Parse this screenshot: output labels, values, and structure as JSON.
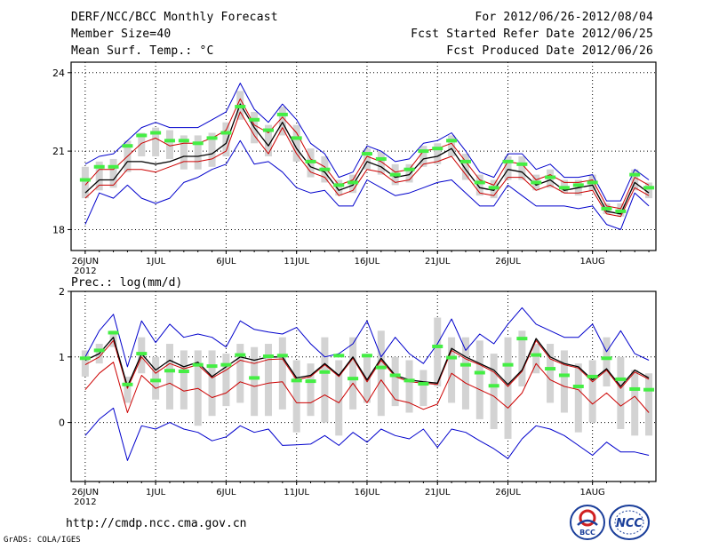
{
  "header": {
    "title": "DERF/NCC/BCC Monthly Forecast",
    "member_size": "Member Size=40",
    "variable": "Mean Surf. Temp.: °C",
    "period": "For 2012/06/26-2012/08/04",
    "started": "Fcst Started Refer Date 2012/06/25",
    "produced": "Fcst Produced Date 2012/06/26"
  },
  "footer": {
    "url": "http://cmdp.ncc.cma.gov.cn",
    "credit": "GrADS: COLA/IGES",
    "logo1_text": "BCC",
    "logo2_text": "NCC"
  },
  "colors": {
    "box": "#d3d3d3",
    "mean": "#44ee44",
    "median": "#000000",
    "spread": "#cc0000",
    "envelope": "#0000cc",
    "grid": "#000000"
  },
  "chart_data": [
    {
      "type": "line",
      "name": "temperature",
      "ylabel": "Mean Surf. Temp.: °C",
      "ylim": [
        17.2,
        24.4
      ],
      "yticks": [
        18,
        21,
        24
      ],
      "xlim": [
        -1,
        40.5
      ],
      "xticks": [
        {
          "i": 0,
          "label": "26JUN",
          "sub": "2012"
        },
        {
          "i": 5,
          "label": "1JUL"
        },
        {
          "i": 10,
          "label": "6JUL"
        },
        {
          "i": 15,
          "label": "11JUL"
        },
        {
          "i": 20,
          "label": "16JUL"
        },
        {
          "i": 25,
          "label": "21JUL"
        },
        {
          "i": 30,
          "label": "26JUL"
        },
        {
          "i": 36,
          "label": "1AUG"
        }
      ],
      "series": {
        "max": [
          20.5,
          20.8,
          20.9,
          21.4,
          21.9,
          22.1,
          21.9,
          21.9,
          21.9,
          22.2,
          22.5,
          23.6,
          22.6,
          22.1,
          22.8,
          22.2,
          21.3,
          20.9,
          20.0,
          20.2,
          21.2,
          21.0,
          20.6,
          20.7,
          21.3,
          21.4,
          21.7,
          21.0,
          20.2,
          20.0,
          20.9,
          20.9,
          20.3,
          20.5,
          20.0,
          20.0,
          20.1,
          19.1,
          19.1,
          20.3,
          19.9
        ],
        "hi": [
          19.7,
          20.3,
          20.3,
          20.8,
          21.3,
          21.5,
          21.2,
          21.3,
          21.3,
          21.5,
          21.8,
          23.0,
          22.0,
          21.7,
          22.3,
          21.7,
          20.7,
          20.4,
          19.7,
          19.9,
          20.8,
          20.6,
          20.2,
          20.3,
          21.0,
          21.1,
          21.3,
          20.6,
          19.9,
          19.7,
          20.6,
          20.5,
          19.9,
          20.1,
          19.8,
          19.8,
          19.9,
          18.9,
          18.8,
          20.0,
          19.7
        ],
        "median": [
          19.4,
          19.9,
          19.9,
          20.6,
          20.6,
          20.5,
          20.6,
          20.8,
          20.8,
          20.9,
          21.3,
          22.8,
          21.9,
          21.2,
          22.1,
          21.1,
          20.4,
          20.2,
          19.5,
          19.7,
          20.6,
          20.4,
          20.0,
          20.1,
          20.7,
          20.8,
          21.1,
          20.3,
          19.6,
          19.5,
          20.3,
          20.2,
          19.7,
          19.9,
          19.5,
          19.6,
          19.7,
          18.7,
          18.6,
          19.8,
          19.4
        ],
        "lo": [
          19.2,
          19.7,
          19.7,
          20.3,
          20.3,
          20.2,
          20.4,
          20.6,
          20.6,
          20.7,
          21.0,
          22.5,
          21.6,
          20.9,
          21.9,
          20.9,
          20.2,
          20.0,
          19.3,
          19.5,
          20.3,
          20.2,
          19.8,
          19.9,
          20.5,
          20.6,
          20.8,
          20.1,
          19.4,
          19.3,
          20.0,
          20.0,
          19.5,
          19.7,
          19.4,
          19.4,
          19.5,
          18.6,
          18.5,
          19.6,
          19.3
        ],
        "min": [
          18.2,
          19.4,
          19.2,
          19.7,
          19.2,
          19.0,
          19.2,
          19.8,
          20.0,
          20.3,
          20.5,
          21.4,
          20.5,
          20.6,
          20.2,
          19.6,
          19.4,
          19.5,
          18.9,
          18.9,
          19.9,
          19.6,
          19.3,
          19.4,
          19.6,
          19.8,
          19.9,
          19.4,
          18.9,
          18.9,
          19.7,
          19.3,
          18.9,
          18.9,
          18.9,
          18.8,
          18.9,
          18.2,
          18.0,
          19.4,
          18.9
        ],
        "mean": [
          19.9,
          20.4,
          20.4,
          21.2,
          21.6,
          21.7,
          21.4,
          21.4,
          21.3,
          21.5,
          21.7,
          22.7,
          22.2,
          21.8,
          22.4,
          21.5,
          20.6,
          20.3,
          19.7,
          19.8,
          20.9,
          20.7,
          20.1,
          20.3,
          21.0,
          21.1,
          21.4,
          20.6,
          19.8,
          19.6,
          20.6,
          20.5,
          19.8,
          20.0,
          19.6,
          19.7,
          19.8,
          18.8,
          18.7,
          20.1,
          19.6
        ],
        "box_top": [
          20.4,
          20.6,
          20.7,
          21.4,
          21.7,
          21.9,
          21.8,
          21.6,
          21.6,
          21.7,
          22.1,
          23.3,
          22.5,
          22.0,
          22.7,
          22.0,
          21.1,
          20.8,
          19.9,
          20.1,
          21.1,
          21.0,
          20.5,
          20.5,
          21.2,
          21.3,
          21.6,
          20.9,
          20.1,
          19.9,
          20.8,
          20.8,
          20.1,
          20.3,
          19.9,
          19.9,
          20.1,
          19.0,
          19.0,
          20.3,
          19.8
        ],
        "box_bot": [
          19.2,
          19.5,
          19.6,
          20.2,
          20.8,
          20.8,
          20.7,
          20.3,
          20.3,
          20.4,
          20.8,
          22.2,
          21.3,
          20.8,
          21.6,
          20.6,
          20.0,
          19.8,
          19.3,
          19.4,
          20.3,
          20.1,
          19.7,
          19.8,
          20.4,
          20.5,
          20.8,
          19.9,
          19.3,
          19.2,
          19.9,
          19.9,
          19.5,
          19.6,
          19.4,
          19.3,
          19.5,
          18.6,
          18.5,
          19.5,
          19.2
        ]
      }
    },
    {
      "type": "line",
      "name": "precipitation",
      "ylabel": "Prec.: log(mm/d)",
      "ylim": [
        -0.9,
        2.0
      ],
      "yticks": [
        0,
        1,
        2
      ],
      "xlim": [
        -1,
        40.5
      ],
      "xticks": [
        {
          "i": 0,
          "label": "26JUN",
          "sub": "2012"
        },
        {
          "i": 5,
          "label": "1JUL"
        },
        {
          "i": 10,
          "label": "6JUL"
        },
        {
          "i": 15,
          "label": "11JUL"
        },
        {
          "i": 20,
          "label": "16JUL"
        },
        {
          "i": 25,
          "label": "21JUL"
        },
        {
          "i": 30,
          "label": "26JUL"
        },
        {
          "i": 36,
          "label": "1AUG"
        }
      ],
      "series": {
        "max": [
          1.0,
          1.4,
          1.65,
          0.85,
          1.55,
          1.22,
          1.5,
          1.3,
          1.35,
          1.3,
          1.15,
          1.55,
          1.42,
          1.38,
          1.35,
          1.45,
          1.2,
          1.0,
          1.05,
          1.2,
          1.55,
          1.0,
          1.3,
          1.05,
          0.9,
          1.2,
          1.58,
          1.1,
          1.35,
          1.2,
          1.5,
          1.75,
          1.5,
          1.4,
          1.3,
          1.3,
          1.5,
          1.08,
          1.4,
          1.05,
          0.95
        ],
        "median": [
          0.95,
          1.05,
          1.3,
          0.55,
          1.05,
          0.8,
          0.95,
          0.85,
          0.92,
          0.7,
          0.85,
          1.0,
          0.95,
          1.0,
          1.0,
          0.68,
          0.72,
          0.9,
          0.72,
          1.0,
          0.65,
          0.98,
          0.72,
          0.65,
          0.62,
          0.6,
          1.13,
          1.0,
          0.9,
          0.8,
          0.58,
          0.8,
          1.28,
          1.0,
          0.9,
          0.85,
          0.65,
          0.82,
          0.55,
          0.8,
          0.68
        ],
        "lo": [
          0.88,
          1.0,
          1.25,
          0.52,
          1.0,
          0.75,
          0.9,
          0.82,
          0.88,
          0.68,
          0.8,
          0.95,
          0.9,
          0.96,
          0.97,
          0.65,
          0.7,
          0.88,
          0.7,
          0.98,
          0.62,
          0.95,
          0.7,
          0.62,
          0.6,
          0.58,
          1.1,
          0.97,
          0.88,
          0.77,
          0.55,
          0.78,
          1.25,
          0.97,
          0.88,
          0.83,
          0.62,
          0.8,
          0.52,
          0.77,
          0.66
        ],
        "spread": [
          0.5,
          0.75,
          0.92,
          0.15,
          0.72,
          0.52,
          0.6,
          0.48,
          0.52,
          0.38,
          0.45,
          0.62,
          0.55,
          0.6,
          0.62,
          0.3,
          0.3,
          0.42,
          0.3,
          0.6,
          0.3,
          0.65,
          0.35,
          0.3,
          0.2,
          0.28,
          0.75,
          0.6,
          0.5,
          0.4,
          0.22,
          0.45,
          0.9,
          0.65,
          0.55,
          0.5,
          0.28,
          0.45,
          0.25,
          0.4,
          0.15
        ],
        "min": [
          -0.2,
          0.05,
          0.22,
          -0.58,
          -0.05,
          -0.1,
          0.0,
          -0.1,
          -0.15,
          -0.28,
          -0.22,
          -0.05,
          -0.15,
          -0.1,
          -0.35,
          -0.34,
          -0.33,
          -0.2,
          -0.35,
          -0.15,
          -0.3,
          -0.1,
          -0.2,
          -0.25,
          -0.1,
          -0.38,
          -0.1,
          -0.15,
          -0.28,
          -0.4,
          -0.55,
          -0.25,
          -0.05,
          -0.1,
          -0.2,
          -0.35,
          -0.5,
          -0.3,
          -0.45,
          -0.45,
          -0.5
        ],
        "mean": [
          0.98,
          1.1,
          1.37,
          0.58,
          1.05,
          0.64,
          0.79,
          0.78,
          0.88,
          0.86,
          0.88,
          1.03,
          0.68,
          1.01,
          1.02,
          0.64,
          0.63,
          0.77,
          1.02,
          0.67,
          1.02,
          0.84,
          0.72,
          0.64,
          0.59,
          1.16,
          0.99,
          0.88,
          0.76,
          0.56,
          0.88,
          1.28,
          1.03,
          0.82,
          0.72,
          0.55,
          0.7,
          0.98,
          0.66,
          0.51,
          0.5
        ],
        "box_top": [
          1.1,
          1.2,
          1.4,
          0.7,
          1.3,
          1.0,
          1.2,
          1.1,
          1.1,
          1.1,
          1.05,
          1.2,
          1.15,
          1.2,
          1.3,
          0.95,
          0.9,
          1.3,
          0.95,
          1.3,
          1.05,
          1.4,
          1.0,
          0.95,
          0.8,
          1.6,
          1.3,
          1.3,
          1.25,
          1.05,
          1.3,
          1.4,
          1.2,
          1.2,
          1.1,
          0.9,
          0.95,
          1.3,
          1.0,
          0.8,
          0.75
        ],
        "box_bot": [
          0.7,
          0.9,
          1.15,
          0.3,
          0.75,
          0.35,
          0.2,
          0.2,
          -0.05,
          0.1,
          0.25,
          0.3,
          0.1,
          0.1,
          0.2,
          -0.15,
          0.1,
          0.0,
          -0.2,
          0.2,
          0.3,
          0.1,
          0.25,
          0.15,
          0.25,
          0.55,
          0.3,
          0.2,
          0.05,
          -0.1,
          -0.25,
          0.55,
          0.75,
          0.3,
          0.15,
          -0.15,
          0.0,
          0.55,
          -0.1,
          -0.2,
          -0.2
        ]
      }
    }
  ]
}
